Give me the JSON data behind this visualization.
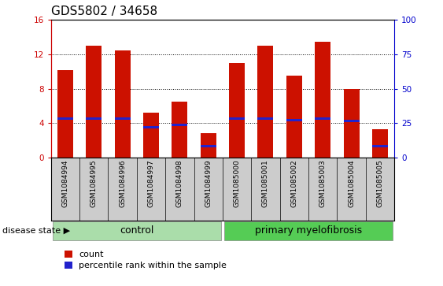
{
  "title": "GDS5802 / 34658",
  "samples": [
    "GSM1084994",
    "GSM1084995",
    "GSM1084996",
    "GSM1084997",
    "GSM1084998",
    "GSM1084999",
    "GSM1085000",
    "GSM1085001",
    "GSM1085002",
    "GSM1085003",
    "GSM1085004",
    "GSM1085005"
  ],
  "count_values": [
    10.2,
    13.0,
    12.5,
    5.2,
    6.5,
    2.8,
    11.0,
    13.0,
    9.5,
    13.5,
    8.0,
    3.3
  ],
  "percentile_values": [
    4.5,
    4.5,
    4.5,
    3.5,
    3.8,
    1.3,
    4.5,
    4.5,
    4.3,
    4.5,
    4.2,
    1.3
  ],
  "ylim_left": [
    0,
    16
  ],
  "ylim_right": [
    0,
    100
  ],
  "yticks_left": [
    0,
    4,
    8,
    12,
    16
  ],
  "yticks_right": [
    0,
    25,
    50,
    75,
    100
  ],
  "bar_width": 0.55,
  "bar_color_red": "#cc1100",
  "bar_color_blue": "#2222cc",
  "control_count": 6,
  "control_label": "control",
  "disease_label": "primary myelofibrosis",
  "disease_state_label": "disease state",
  "legend_count_label": "count",
  "legend_pct_label": "percentile rank within the sample",
  "left_tick_color": "#cc0000",
  "right_tick_color": "#0000cc",
  "band_control_color": "#aaddaa",
  "band_disease_color": "#55cc55",
  "title_fontsize": 11,
  "axis_tick_fontsize": 7.5,
  "band_label_fontsize": 9,
  "legend_fontsize": 8,
  "sample_label_fontsize": 6.5
}
